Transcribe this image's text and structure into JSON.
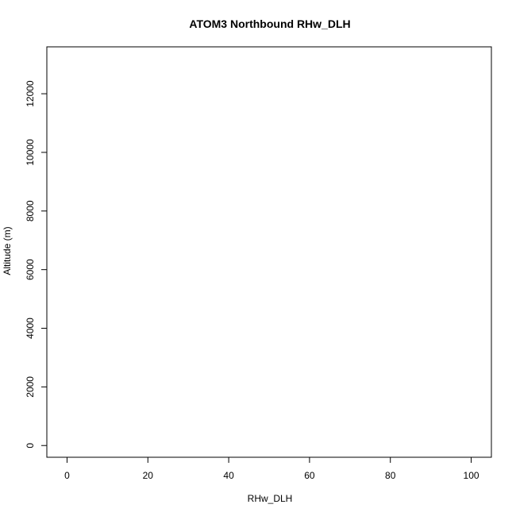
{
  "chart_data": {
    "type": "scatter",
    "title": "ATOM3 Northbound RHw_DLH",
    "xlabel": "RHw_DLH",
    "ylabel": "Altitude (m)",
    "xlim": [
      -5,
      105
    ],
    "ylim": [
      -400,
      13600
    ],
    "xticks": [
      0,
      20,
      40,
      60,
      80,
      100
    ],
    "yticks": [
      0,
      2000,
      4000,
      6000,
      8000,
      10000,
      12000
    ],
    "grid": false,
    "legend": "none",
    "marker": "open-circle",
    "connected": true,
    "series": [
      {
        "color": "#0000ff",
        "x": [],
        "y": []
      }
    ]
  }
}
